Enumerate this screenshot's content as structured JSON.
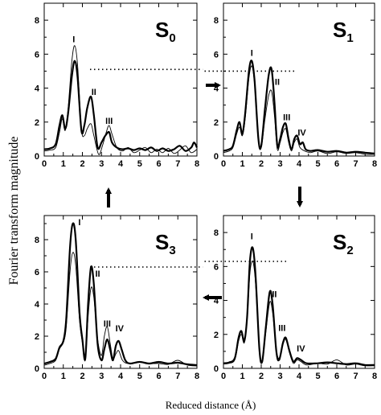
{
  "chart_data": {
    "type": "line",
    "ylabel": "Fourier transform magnitude",
    "xlabel": "Reduced distance (Å)",
    "panels": [
      {
        "id": "s0",
        "state": "S",
        "state_sub": "0",
        "xlim": [
          0,
          8
        ],
        "ylim": [
          0,
          9
        ],
        "xticks": [
          "0",
          "1",
          "2",
          "3",
          "4",
          "5",
          "6",
          "7",
          "8"
        ],
        "yticks": [
          "0",
          "2",
          "4",
          "6",
          "8"
        ],
        "dotted_level": 5.1,
        "thick": [
          [
            0,
            0.4
          ],
          [
            0.3,
            0.45
          ],
          [
            0.6,
            0.7
          ],
          [
            0.8,
            1.8
          ],
          [
            0.95,
            2.4
          ],
          [
            1.1,
            1.6
          ],
          [
            1.25,
            2.5
          ],
          [
            1.45,
            4.7
          ],
          [
            1.6,
            5.6
          ],
          [
            1.75,
            4.6
          ],
          [
            1.95,
            1.5
          ],
          [
            2.1,
            1.8
          ],
          [
            2.25,
            2.8
          ],
          [
            2.45,
            3.5
          ],
          [
            2.6,
            2.4
          ],
          [
            2.8,
            0.5
          ],
          [
            3.0,
            0.8
          ],
          [
            3.2,
            1.2
          ],
          [
            3.4,
            1.4
          ],
          [
            3.55,
            0.8
          ],
          [
            3.8,
            0.5
          ],
          [
            4.1,
            0.4
          ],
          [
            4.4,
            0.45
          ],
          [
            4.7,
            0.35
          ],
          [
            5.0,
            0.45
          ],
          [
            5.3,
            0.35
          ],
          [
            5.6,
            0.5
          ],
          [
            5.9,
            0.3
          ],
          [
            6.2,
            0.45
          ],
          [
            6.5,
            0.3
          ],
          [
            6.8,
            0.4
          ],
          [
            7.1,
            0.6
          ],
          [
            7.4,
            0.3
          ],
          [
            7.7,
            0.5
          ],
          [
            7.85,
            0.8
          ],
          [
            8.0,
            0.5
          ]
        ],
        "thin": [
          [
            0,
            0.3
          ],
          [
            0.3,
            0.35
          ],
          [
            0.6,
            0.5
          ],
          [
            0.8,
            1.4
          ],
          [
            0.95,
            2.2
          ],
          [
            1.1,
            1.5
          ],
          [
            1.25,
            2.8
          ],
          [
            1.45,
            5.6
          ],
          [
            1.6,
            6.5
          ],
          [
            1.75,
            5.3
          ],
          [
            1.95,
            1.6
          ],
          [
            2.1,
            1.2
          ],
          [
            2.25,
            1.6
          ],
          [
            2.45,
            1.9
          ],
          [
            2.6,
            1.2
          ],
          [
            2.85,
            0.1
          ],
          [
            3.05,
            0.6
          ],
          [
            3.25,
            1.4
          ],
          [
            3.4,
            1.8
          ],
          [
            3.55,
            1.3
          ],
          [
            3.8,
            0.5
          ],
          [
            4.1,
            0.3
          ],
          [
            4.4,
            0.5
          ],
          [
            4.7,
            0.2
          ],
          [
            5.0,
            0.35
          ],
          [
            5.3,
            0.5
          ],
          [
            5.6,
            0.2
          ],
          [
            5.9,
            0.4
          ],
          [
            6.2,
            0.2
          ],
          [
            6.5,
            0.45
          ],
          [
            6.8,
            0.15
          ],
          [
            7.1,
            0.35
          ],
          [
            7.4,
            0.6
          ],
          [
            7.7,
            0.2
          ],
          [
            8.0,
            0.4
          ]
        ],
        "peaks": [
          {
            "label": "I",
            "x": 1.55,
            "y": 6.7
          },
          {
            "label": "II",
            "x": 2.6,
            "y": 3.6
          },
          {
            "label": "III",
            "x": 3.4,
            "y": 1.9
          }
        ]
      },
      {
        "id": "s1",
        "state": "S",
        "state_sub": "1",
        "xlim": [
          0,
          8
        ],
        "ylim": [
          0,
          9
        ],
        "xticks": [
          "0",
          "1",
          "2",
          "3",
          "4",
          "5",
          "6",
          "7",
          "8"
        ],
        "yticks": [
          "0",
          "2",
          "4",
          "6",
          "8"
        ],
        "dotted_level": 5.0,
        "thick": [
          [
            0,
            0.3
          ],
          [
            0.3,
            0.4
          ],
          [
            0.5,
            0.6
          ],
          [
            0.7,
            1.5
          ],
          [
            0.85,
            2.0
          ],
          [
            1.0,
            1.3
          ],
          [
            1.15,
            2.5
          ],
          [
            1.35,
            5.0
          ],
          [
            1.5,
            5.6
          ],
          [
            1.65,
            4.4
          ],
          [
            1.85,
            1.0
          ],
          [
            2.0,
            0.6
          ],
          [
            2.2,
            2.8
          ],
          [
            2.4,
            4.8
          ],
          [
            2.55,
            5.1
          ],
          [
            2.7,
            3.2
          ],
          [
            2.85,
            0.6
          ],
          [
            3.0,
            1.0
          ],
          [
            3.15,
            1.7
          ],
          [
            3.3,
            1.9
          ],
          [
            3.45,
            1.0
          ],
          [
            3.6,
            0.4
          ],
          [
            3.75,
            1.0
          ],
          [
            3.9,
            1.2
          ],
          [
            4.05,
            0.7
          ],
          [
            4.2,
            0.8
          ],
          [
            4.35,
            0.4
          ],
          [
            4.6,
            0.3
          ],
          [
            5.0,
            0.35
          ],
          [
            5.5,
            0.25
          ],
          [
            6.0,
            0.3
          ],
          [
            6.5,
            0.2
          ],
          [
            7.0,
            0.25
          ],
          [
            7.5,
            0.2
          ],
          [
            8.0,
            0.15
          ]
        ],
        "thin": [
          [
            0,
            0.2
          ],
          [
            0.3,
            0.3
          ],
          [
            0.5,
            0.5
          ],
          [
            0.7,
            1.3
          ],
          [
            0.85,
            1.7
          ],
          [
            1.0,
            1.2
          ],
          [
            1.15,
            2.2
          ],
          [
            1.35,
            4.6
          ],
          [
            1.5,
            5.3
          ],
          [
            1.65,
            4.2
          ],
          [
            1.85,
            0.9
          ],
          [
            2.0,
            0.5
          ],
          [
            2.2,
            2.2
          ],
          [
            2.4,
            3.6
          ],
          [
            2.55,
            3.8
          ],
          [
            2.7,
            2.4
          ],
          [
            2.85,
            0.4
          ],
          [
            3.0,
            0.8
          ],
          [
            3.15,
            1.4
          ],
          [
            3.3,
            1.6
          ],
          [
            3.45,
            0.8
          ],
          [
            3.6,
            0.3
          ],
          [
            3.75,
            0.8
          ],
          [
            3.9,
            1.0
          ],
          [
            4.05,
            0.5
          ],
          [
            4.3,
            0.3
          ],
          [
            4.6,
            0.2
          ],
          [
            5.0,
            0.3
          ],
          [
            5.5,
            0.15
          ],
          [
            6.0,
            0.25
          ],
          [
            6.5,
            0.15
          ],
          [
            7.0,
            0.2
          ],
          [
            7.5,
            0.1
          ],
          [
            8.0,
            0.1
          ]
        ],
        "peaks": [
          {
            "label": "I",
            "x": 1.5,
            "y": 5.9
          },
          {
            "label": "II",
            "x": 2.85,
            "y": 4.2
          },
          {
            "label": "III",
            "x": 3.35,
            "y": 2.1
          },
          {
            "label": "IV",
            "x": 4.15,
            "y": 1.2
          }
        ]
      },
      {
        "id": "s3",
        "state": "S",
        "state_sub": "3",
        "xlim": [
          0,
          8
        ],
        "ylim": [
          0,
          9.5
        ],
        "xticks": [
          "0",
          "1",
          "2",
          "3",
          "4",
          "5",
          "6",
          "7",
          "8"
        ],
        "yticks": [
          "0",
          "2",
          "4",
          "6",
          "8"
        ],
        "dotted_level": 6.3,
        "thick": [
          [
            0,
            0.3
          ],
          [
            0.3,
            0.4
          ],
          [
            0.6,
            0.6
          ],
          [
            0.8,
            1.3
          ],
          [
            1.0,
            1.7
          ],
          [
            1.15,
            3.0
          ],
          [
            1.35,
            7.5
          ],
          [
            1.5,
            9.0
          ],
          [
            1.65,
            8.0
          ],
          [
            1.85,
            3.5
          ],
          [
            2.0,
            1.8
          ],
          [
            2.15,
            0.6
          ],
          [
            2.3,
            4.0
          ],
          [
            2.45,
            6.3
          ],
          [
            2.6,
            5.2
          ],
          [
            2.8,
            1.5
          ],
          [
            3.0,
            0.5
          ],
          [
            3.15,
            1.2
          ],
          [
            3.3,
            1.8
          ],
          [
            3.45,
            1.2
          ],
          [
            3.6,
            0.5
          ],
          [
            3.75,
            1.4
          ],
          [
            3.9,
            1.7
          ],
          [
            4.05,
            1.2
          ],
          [
            4.25,
            0.5
          ],
          [
            4.5,
            0.3
          ],
          [
            5.0,
            0.4
          ],
          [
            5.5,
            0.3
          ],
          [
            6.0,
            0.4
          ],
          [
            6.5,
            0.3
          ],
          [
            7.0,
            0.35
          ],
          [
            7.5,
            0.25
          ],
          [
            8.0,
            0.2
          ]
        ],
        "thin": [
          [
            0,
            0.2
          ],
          [
            0.3,
            0.3
          ],
          [
            0.6,
            0.5
          ],
          [
            0.8,
            1.2
          ],
          [
            1.0,
            1.6
          ],
          [
            1.15,
            2.5
          ],
          [
            1.35,
            6.0
          ],
          [
            1.5,
            7.2
          ],
          [
            1.65,
            6.4
          ],
          [
            1.85,
            3.0
          ],
          [
            2.0,
            1.6
          ],
          [
            2.15,
            0.5
          ],
          [
            2.3,
            3.2
          ],
          [
            2.45,
            5.0
          ],
          [
            2.6,
            4.4
          ],
          [
            2.8,
            1.8
          ],
          [
            3.0,
            0.8
          ],
          [
            3.15,
            2.0
          ],
          [
            3.3,
            2.6
          ],
          [
            3.45,
            1.6
          ],
          [
            3.6,
            0.6
          ],
          [
            3.75,
            0.9
          ],
          [
            3.9,
            1.1
          ],
          [
            4.1,
            0.5
          ],
          [
            4.4,
            0.3
          ],
          [
            5.0,
            0.4
          ],
          [
            5.5,
            0.3
          ],
          [
            6.0,
            0.3
          ],
          [
            6.5,
            0.25
          ],
          [
            7.0,
            0.5
          ],
          [
            7.5,
            0.2
          ],
          [
            8.0,
            0.15
          ]
        ],
        "peaks": [
          {
            "label": "I",
            "x": 1.85,
            "y": 8.9
          },
          {
            "label": "II",
            "x": 2.8,
            "y": 5.7
          },
          {
            "label": "III",
            "x": 3.3,
            "y": 2.6
          },
          {
            "label": "IV",
            "x": 3.95,
            "y": 2.3
          }
        ]
      },
      {
        "id": "s2",
        "state": "S",
        "state_sub": "2",
        "xlim": [
          0,
          8
        ],
        "ylim": [
          0,
          9
        ],
        "xticks": [
          "0",
          "1",
          "2",
          "3",
          "4",
          "5",
          "6",
          "7",
          "8"
        ],
        "yticks": [
          "0",
          "2",
          "4",
          "6",
          "8"
        ],
        "dotted_level": 6.3,
        "thick": [
          [
            0,
            0.3
          ],
          [
            0.3,
            0.35
          ],
          [
            0.6,
            0.6
          ],
          [
            0.8,
            1.8
          ],
          [
            0.95,
            2.2
          ],
          [
            1.1,
            1.6
          ],
          [
            1.25,
            3.0
          ],
          [
            1.4,
            6.3
          ],
          [
            1.55,
            7.1
          ],
          [
            1.7,
            5.5
          ],
          [
            1.9,
            1.2
          ],
          [
            2.05,
            0.4
          ],
          [
            2.25,
            2.5
          ],
          [
            2.45,
            4.5
          ],
          [
            2.6,
            3.8
          ],
          [
            2.8,
            1.0
          ],
          [
            2.95,
            0.5
          ],
          [
            3.15,
            1.5
          ],
          [
            3.3,
            1.8
          ],
          [
            3.5,
            1.0
          ],
          [
            3.7,
            0.4
          ],
          [
            3.9,
            0.6
          ],
          [
            4.1,
            0.5
          ],
          [
            4.4,
            0.3
          ],
          [
            5.0,
            0.3
          ],
          [
            5.5,
            0.35
          ],
          [
            6.0,
            0.3
          ],
          [
            6.5,
            0.25
          ],
          [
            7.0,
            0.3
          ],
          [
            7.5,
            0.2
          ],
          [
            8.0,
            0.2
          ]
        ],
        "thin": [
          [
            0,
            0.25
          ],
          [
            0.3,
            0.3
          ],
          [
            0.6,
            0.5
          ],
          [
            0.8,
            1.6
          ],
          [
            0.95,
            2.0
          ],
          [
            1.1,
            1.5
          ],
          [
            1.25,
            2.8
          ],
          [
            1.4,
            5.6
          ],
          [
            1.55,
            6.3
          ],
          [
            1.7,
            5.0
          ],
          [
            1.9,
            1.1
          ],
          [
            2.05,
            0.4
          ],
          [
            2.25,
            2.2
          ],
          [
            2.45,
            3.9
          ],
          [
            2.6,
            3.3
          ],
          [
            2.8,
            1.1
          ],
          [
            2.95,
            0.6
          ],
          [
            3.15,
            1.4
          ],
          [
            3.3,
            1.7
          ],
          [
            3.5,
            0.9
          ],
          [
            3.7,
            0.3
          ],
          [
            3.9,
            0.5
          ],
          [
            4.1,
            0.4
          ],
          [
            4.4,
            0.2
          ],
          [
            5.0,
            0.3
          ],
          [
            5.5,
            0.25
          ],
          [
            6.0,
            0.5
          ],
          [
            6.5,
            0.2
          ],
          [
            7.0,
            0.25
          ],
          [
            7.5,
            0.15
          ],
          [
            8.0,
            0.15
          ]
        ],
        "peaks": [
          {
            "label": "I",
            "x": 1.5,
            "y": 7.6
          },
          {
            "label": "II",
            "x": 2.7,
            "y": 4.2
          },
          {
            "label": "III",
            "x": 3.1,
            "y": 2.2
          },
          {
            "label": "IV",
            "x": 4.1,
            "y": 1.0
          }
        ]
      }
    ]
  }
}
